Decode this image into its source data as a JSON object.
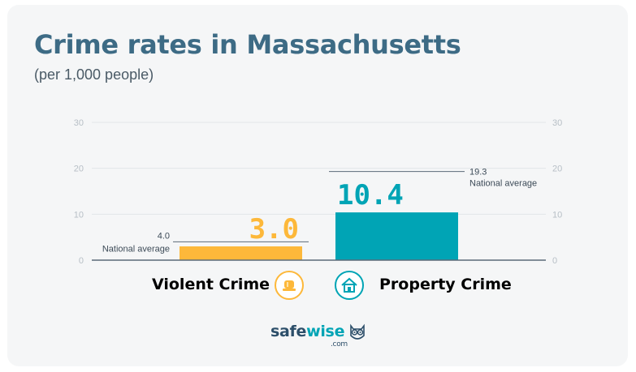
{
  "header": {
    "title": "Crime rates in Massachusetts",
    "subtitle": "(per 1,000 people)"
  },
  "chart_data": {
    "type": "bar",
    "title": "Crime rates in Massachusetts",
    "subtitle": "(per 1,000 people)",
    "ylim": [
      0,
      30
    ],
    "yticks": [
      0,
      10,
      20,
      30
    ],
    "grid": true,
    "categories": [
      "Violent Crime",
      "Property Crime"
    ],
    "values": [
      3.0,
      10.4
    ],
    "value_labels": [
      "3.0",
      "10.4"
    ],
    "colors": [
      "#fdb83a",
      "#00a4b5"
    ],
    "national_average": {
      "values": [
        4.0,
        19.3
      ],
      "value_labels": [
        "4.0",
        "19.3"
      ],
      "label": "National average"
    }
  },
  "legend": {
    "violent": {
      "label": "Violent Crime",
      "icon": "siren-icon",
      "color": "#fdb83a"
    },
    "property": {
      "label": "Property Crime",
      "icon": "house-icon",
      "color": "#00a4b5"
    }
  },
  "brand": {
    "name_part1": "safe",
    "name_part2": "wise",
    "domain": ".com",
    "icon": "owl-icon"
  }
}
